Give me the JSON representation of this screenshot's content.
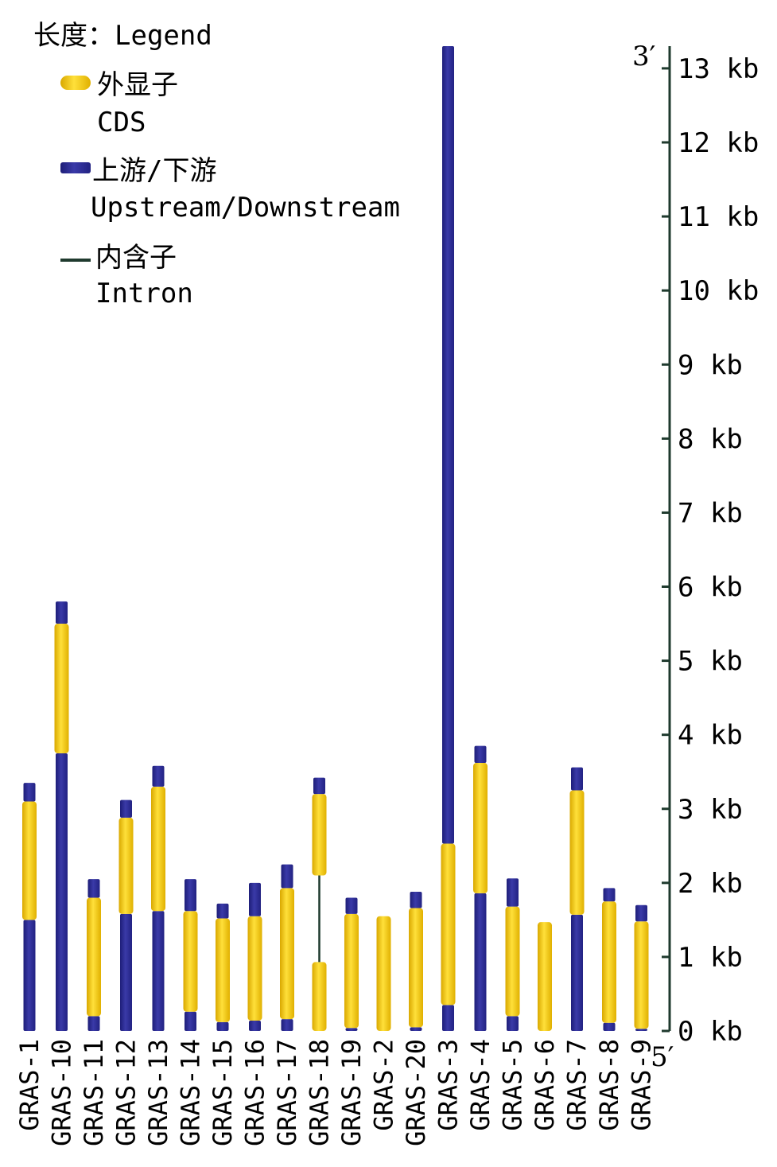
{
  "chart_data": {
    "type": "bar",
    "legend": {
      "title": "长度：Legend",
      "entries": [
        {
          "key": "cds",
          "label_cn": "外显子",
          "label_en": "CDS",
          "color": "#f5c800"
        },
        {
          "key": "utr",
          "label_cn": "上游/下游",
          "label_en": "Upstream/Downstream",
          "color": "#2b2b8f"
        },
        {
          "key": "intron",
          "label_cn": "内含子",
          "label_en": "Intron",
          "color": "#1f3a2e"
        }
      ],
      "placement": "top-left"
    },
    "axis": {
      "side": "right",
      "unit": "kb",
      "ylim": [
        0,
        13.3
      ],
      "ticks": [
        0,
        1,
        2,
        3,
        4,
        5,
        6,
        7,
        8,
        9,
        10,
        11,
        12,
        13
      ],
      "top_label": "3′",
      "bottom_label": "5′"
    },
    "colors": {
      "cds": "#f5c800",
      "utr": "#2b2b8f",
      "intron": "#1f3a2e",
      "axis": "#1f3a2e"
    },
    "genes": [
      {
        "name": "GRAS-1",
        "segments": [
          {
            "type": "utr",
            "start": 0,
            "end": 1.5
          },
          {
            "type": "cds",
            "start": 1.5,
            "end": 3.1
          },
          {
            "type": "utr",
            "start": 3.1,
            "end": 3.35
          }
        ]
      },
      {
        "name": "GRAS-10",
        "segments": [
          {
            "type": "utr",
            "start": 0,
            "end": 3.75
          },
          {
            "type": "cds",
            "start": 3.75,
            "end": 5.5
          },
          {
            "type": "utr",
            "start": 5.5,
            "end": 5.8
          }
        ]
      },
      {
        "name": "GRAS-11",
        "segments": [
          {
            "type": "utr",
            "start": 0,
            "end": 0.2
          },
          {
            "type": "cds",
            "start": 0.2,
            "end": 1.8
          },
          {
            "type": "utr",
            "start": 1.8,
            "end": 2.05
          }
        ]
      },
      {
        "name": "GRAS-12",
        "segments": [
          {
            "type": "utr",
            "start": 0,
            "end": 1.58
          },
          {
            "type": "cds",
            "start": 1.58,
            "end": 2.88
          },
          {
            "type": "utr",
            "start": 2.88,
            "end": 3.12
          }
        ]
      },
      {
        "name": "GRAS-13",
        "segments": [
          {
            "type": "utr",
            "start": 0,
            "end": 1.62
          },
          {
            "type": "cds",
            "start": 1.62,
            "end": 3.3
          },
          {
            "type": "utr",
            "start": 3.3,
            "end": 3.58
          }
        ]
      },
      {
        "name": "GRAS-14",
        "segments": [
          {
            "type": "utr",
            "start": 0,
            "end": 0.26
          },
          {
            "type": "cds",
            "start": 0.26,
            "end": 1.62
          },
          {
            "type": "utr",
            "start": 1.62,
            "end": 2.05
          }
        ]
      },
      {
        "name": "GRAS-15",
        "segments": [
          {
            "type": "utr",
            "start": 0,
            "end": 0.12
          },
          {
            "type": "cds",
            "start": 0.12,
            "end": 1.52
          },
          {
            "type": "utr",
            "start": 1.52,
            "end": 1.72
          }
        ]
      },
      {
        "name": "GRAS-16",
        "segments": [
          {
            "type": "utr",
            "start": 0,
            "end": 0.14
          },
          {
            "type": "cds",
            "start": 0.14,
            "end": 1.55
          },
          {
            "type": "utr",
            "start": 1.55,
            "end": 2.0
          }
        ]
      },
      {
        "name": "GRAS-17",
        "segments": [
          {
            "type": "utr",
            "start": 0,
            "end": 0.16
          },
          {
            "type": "cds",
            "start": 0.16,
            "end": 1.93
          },
          {
            "type": "utr",
            "start": 1.93,
            "end": 2.25
          }
        ]
      },
      {
        "name": "GRAS-18",
        "segments": [
          {
            "type": "cds",
            "start": 0,
            "end": 0.93
          },
          {
            "type": "intron",
            "start": 0.93,
            "end": 2.1
          },
          {
            "type": "cds",
            "start": 2.1,
            "end": 3.2
          },
          {
            "type": "utr",
            "start": 3.2,
            "end": 3.42
          }
        ]
      },
      {
        "name": "GRAS-19",
        "segments": [
          {
            "type": "utr",
            "start": 0,
            "end": 0.04
          },
          {
            "type": "cds",
            "start": 0.04,
            "end": 1.58
          },
          {
            "type": "utr",
            "start": 1.58,
            "end": 1.8
          }
        ]
      },
      {
        "name": "GRAS-2",
        "segments": [
          {
            "type": "cds",
            "start": 0,
            "end": 1.55
          }
        ]
      },
      {
        "name": "GRAS-20",
        "segments": [
          {
            "type": "utr",
            "start": 0,
            "end": 0.05
          },
          {
            "type": "cds",
            "start": 0.05,
            "end": 1.66
          },
          {
            "type": "utr",
            "start": 1.66,
            "end": 1.88
          }
        ]
      },
      {
        "name": "GRAS-3",
        "segments": [
          {
            "type": "utr",
            "start": 0,
            "end": 0.35
          },
          {
            "type": "cds",
            "start": 0.35,
            "end": 2.53
          },
          {
            "type": "utr",
            "start": 2.53,
            "end": 13.3
          }
        ]
      },
      {
        "name": "GRAS-4",
        "segments": [
          {
            "type": "utr",
            "start": 0,
            "end": 1.86
          },
          {
            "type": "cds",
            "start": 1.86,
            "end": 3.62
          },
          {
            "type": "utr",
            "start": 3.62,
            "end": 3.85
          }
        ]
      },
      {
        "name": "GRAS-5",
        "segments": [
          {
            "type": "utr",
            "start": 0,
            "end": 0.2
          },
          {
            "type": "cds",
            "start": 0.2,
            "end": 1.68
          },
          {
            "type": "utr",
            "start": 1.68,
            "end": 2.06
          }
        ]
      },
      {
        "name": "GRAS-6",
        "segments": [
          {
            "type": "cds",
            "start": 0,
            "end": 1.47
          }
        ]
      },
      {
        "name": "GRAS-7",
        "segments": [
          {
            "type": "utr",
            "start": 0,
            "end": 1.57
          },
          {
            "type": "cds",
            "start": 1.57,
            "end": 3.25
          },
          {
            "type": "utr",
            "start": 3.25,
            "end": 3.56
          }
        ]
      },
      {
        "name": "GRAS-8",
        "segments": [
          {
            "type": "utr",
            "start": 0,
            "end": 0.11
          },
          {
            "type": "cds",
            "start": 0.11,
            "end": 1.75
          },
          {
            "type": "utr",
            "start": 1.75,
            "end": 1.93
          }
        ]
      },
      {
        "name": "GRAS-9",
        "segments": [
          {
            "type": "utr",
            "start": 0,
            "end": 0.03
          },
          {
            "type": "cds",
            "start": 0.03,
            "end": 1.48
          },
          {
            "type": "utr",
            "start": 1.48,
            "end": 1.7
          }
        ]
      }
    ]
  }
}
